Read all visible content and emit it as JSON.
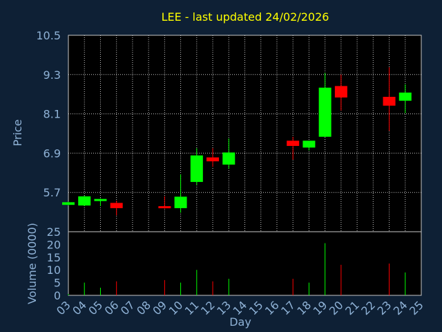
{
  "chart_data": {
    "type": "candlestick",
    "title": "LEE - last updated 24/02/2026",
    "xlabel": "Day",
    "ylabel_price": "Price",
    "ylabel_volume": "Volume (0000)",
    "days": [
      "03",
      "04",
      "05",
      "06",
      "07",
      "08",
      "09",
      "10",
      "11",
      "12",
      "13",
      "14",
      "15",
      "16",
      "17",
      "18",
      "19",
      "20",
      "21",
      "22",
      "23",
      "24",
      "25"
    ],
    "price_yticks": [
      "10.5",
      "9.3",
      "8.1",
      "6.9",
      "5.7"
    ],
    "price_ylim": [
      4.5,
      10.5
    ],
    "volume_yticks": [
      "25",
      "20",
      "15",
      "10",
      "5",
      "0"
    ],
    "volume_ylim": [
      0,
      25
    ],
    "grid": true,
    "colors": {
      "up": "#00ff00",
      "down": "#ff0000",
      "background": "#0e2035",
      "plot": "#000000",
      "grid": "#c8c8c8",
      "title": "#ffff00",
      "labels": "#8fb2d6"
    },
    "candles": [
      {
        "day": "03",
        "open": 5.32,
        "high": 5.42,
        "low": 5.3,
        "close": 5.4,
        "volume": 0.5
      },
      {
        "day": "04",
        "open": 5.3,
        "high": 5.6,
        "low": 5.28,
        "close": 5.58,
        "volume": 5
      },
      {
        "day": "05",
        "open": 5.45,
        "high": 5.52,
        "low": 5.28,
        "close": 5.5,
        "volume": 3
      },
      {
        "day": "06",
        "open": 5.38,
        "high": 5.45,
        "low": 5.0,
        "close": 5.22,
        "volume": 5.5
      },
      {
        "day": "09",
        "open": 5.28,
        "high": 5.58,
        "low": 5.2,
        "close": 5.22,
        "volume": 6
      },
      {
        "day": "10",
        "open": 5.22,
        "high": 6.25,
        "low": 5.08,
        "close": 5.57,
        "volume": 5
      },
      {
        "day": "11",
        "open": 6.02,
        "high": 7.05,
        "low": 5.92,
        "close": 6.83,
        "volume": 10
      },
      {
        "day": "12",
        "open": 6.77,
        "high": 7.05,
        "low": 6.48,
        "close": 6.65,
        "volume": 5.5
      },
      {
        "day": "13",
        "open": 6.55,
        "high": 7.35,
        "low": 6.42,
        "close": 6.92,
        "volume": 6.5
      },
      {
        "day": "17",
        "open": 7.28,
        "high": 7.4,
        "low": 6.7,
        "close": 7.12,
        "volume": 6.5
      },
      {
        "day": "18",
        "open": 7.07,
        "high": 7.28,
        "low": 6.98,
        "close": 7.28,
        "volume": 5
      },
      {
        "day": "19",
        "open": 7.4,
        "high": 9.35,
        "low": 7.4,
        "close": 8.9,
        "volume": 20.5
      },
      {
        "day": "20",
        "open": 8.95,
        "high": 9.3,
        "low": 8.2,
        "close": 8.6,
        "volume": 12
      },
      {
        "day": "23",
        "open": 8.62,
        "high": 9.52,
        "low": 7.58,
        "close": 8.35,
        "volume": 12.5
      },
      {
        "day": "24",
        "open": 8.5,
        "high": 9.0,
        "low": 8.12,
        "close": 8.75,
        "volume": 9
      }
    ]
  }
}
